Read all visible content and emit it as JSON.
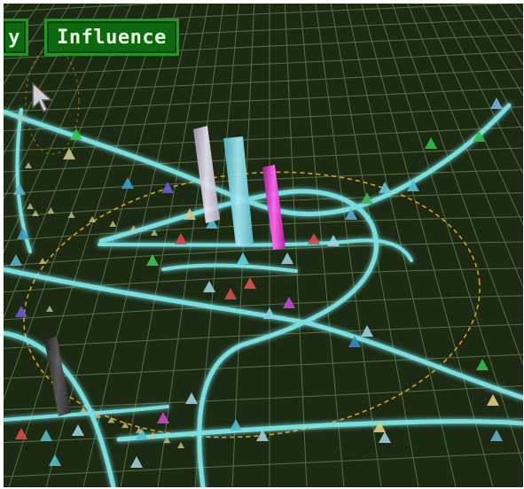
{
  "hud": {
    "prev_button_label": "y",
    "influence_button_label": "Influence"
  },
  "icons": {
    "cursor": "arrow-cursor-icon"
  },
  "colors": {
    "ground": "#1c2a14",
    "grid": "#5f7a4c",
    "road": "#7ee8ea",
    "influence_ring": "#d9a21b",
    "bar_white": "#d8d0e8",
    "bar_cyan": "#7fd8e6",
    "bar_magenta": "#e23bd6",
    "bar_dark": "#3a3a3a"
  }
}
